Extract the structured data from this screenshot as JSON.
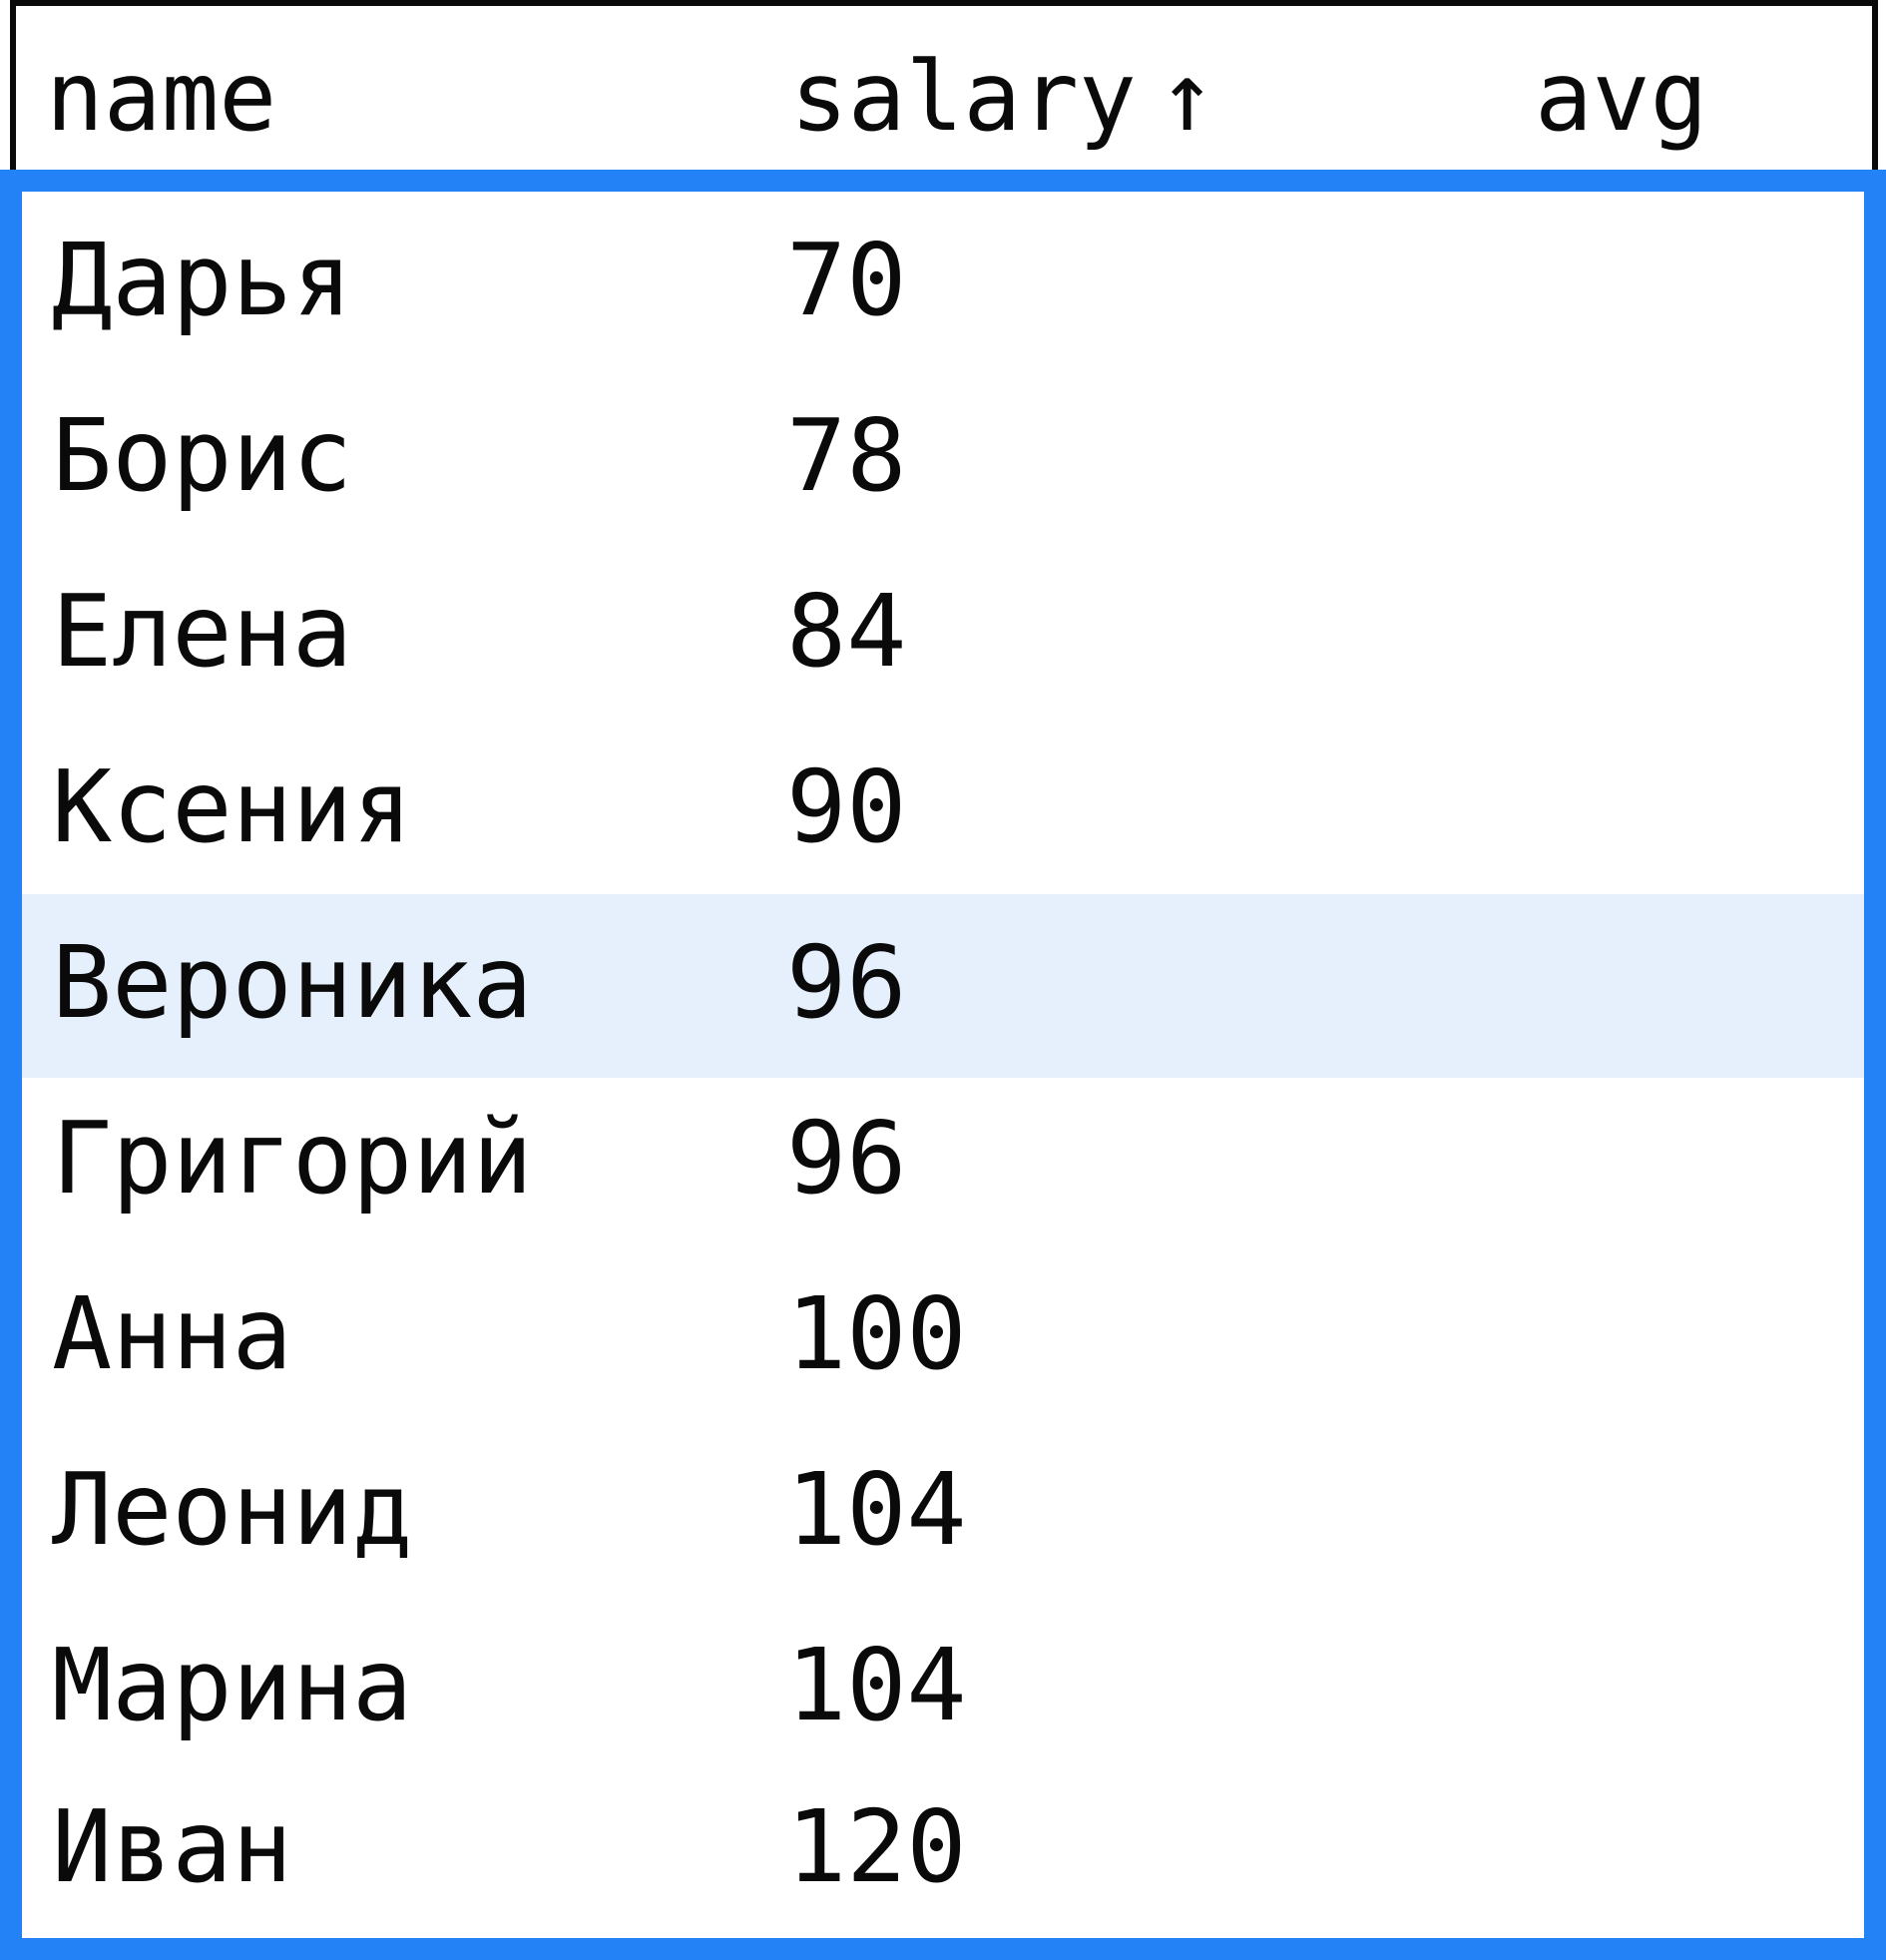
{
  "columns": {
    "name": "name",
    "salary": "salary",
    "salary_sort_indicator": "↑",
    "avg": "avg"
  },
  "selected_row_index": 4,
  "rows": [
    {
      "name": "Дарья",
      "salary": "70",
      "avg": ""
    },
    {
      "name": "Борис",
      "salary": "78",
      "avg": ""
    },
    {
      "name": "Елена",
      "salary": "84",
      "avg": ""
    },
    {
      "name": "Ксения",
      "salary": "90",
      "avg": ""
    },
    {
      "name": "Вероника",
      "salary": "96",
      "avg": ""
    },
    {
      "name": "Григорий",
      "salary": "96",
      "avg": ""
    },
    {
      "name": "Анна",
      "salary": "100",
      "avg": ""
    },
    {
      "name": "Леонид",
      "salary": "104",
      "avg": ""
    },
    {
      "name": "Марина",
      "salary": "104",
      "avg": ""
    },
    {
      "name": "Иван",
      "salary": "120",
      "avg": ""
    }
  ],
  "colors": {
    "focus_border": "#2383f6",
    "selected_row_bg": "#e6f0fd",
    "text": "#0a0a0a"
  }
}
